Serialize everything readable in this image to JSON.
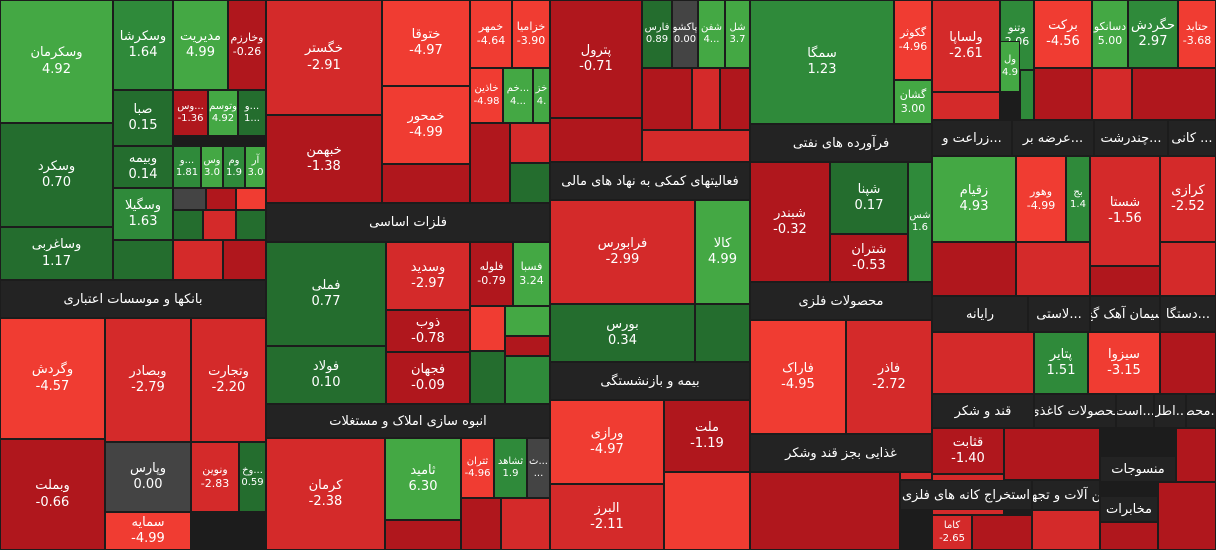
{
  "chart_data": {
    "type": "heatmap",
    "sectors": [
      "بانکها و موسسات اعتباری",
      "فلزات اساسی",
      "انبوه سازی املاک و مستغلات",
      "فعالیتهای کمکی به نهاد های مالی",
      "بیمه و بازنشستگی",
      "فرآورده های نفتی",
      "محصولات فلزی",
      "غذایی بجز قند وشکر",
      "زراعت و...",
      "عرضه بر...",
      "چندرشت...",
      "کانی ...",
      "رایانه",
      "لاستی...",
      "سیمان آهک گچ",
      "دستگا...",
      "قند و شکر",
      "محصولات کاغذی",
      "است...",
      "اطل...",
      "محص...",
      "استخراج کانه های فلزی",
      "ماشین آلات و تجهیزات",
      "منسوجات",
      "مخابرات"
    ],
    "cells": [
      {
        "name": "وسکرمان",
        "value": "4.92"
      },
      {
        "name": "وسکرشا",
        "value": "1.64"
      },
      {
        "name": "مدیریت",
        "value": "4.99"
      },
      {
        "name": "وخارزم",
        "value": "-0.26"
      },
      {
        "name": "وسکرد",
        "value": "0.70"
      },
      {
        "name": "صبا",
        "value": "0.15"
      },
      {
        "name": "وس...",
        "value": "-1.36"
      },
      {
        "name": "وتوسم",
        "value": "4.92"
      },
      {
        "name": "و...",
        "value": "1..."
      },
      {
        "name": "وبیمه",
        "value": "0.14"
      },
      {
        "name": "و...",
        "value": "1.81"
      },
      {
        "name": "وس",
        "value": "3.0"
      },
      {
        "name": "وم",
        "value": "1.9"
      },
      {
        "name": "آر",
        "value": "3.0"
      },
      {
        "name": "وسگیلا",
        "value": "1.63"
      },
      {
        "name": "وساغربی",
        "value": "1.17"
      },
      {
        "name": "وگردش",
        "value": "-4.57"
      },
      {
        "name": "وبصادر",
        "value": "-2.79"
      },
      {
        "name": "وتجارت",
        "value": "-2.20"
      },
      {
        "name": "وپارس",
        "value": "0.00"
      },
      {
        "name": "ونوین",
        "value": "-2.83"
      },
      {
        "name": "وخ...",
        "value": "0.59"
      },
      {
        "name": "وبملت",
        "value": "-0.66"
      },
      {
        "name": "سمایه",
        "value": "-4.99"
      },
      {
        "name": "خگستر",
        "value": "-2.91"
      },
      {
        "name": "خبهمن",
        "value": "-1.38"
      },
      {
        "name": "ختوقا",
        "value": "-4.97"
      },
      {
        "name": "خمحور",
        "value": "-4.99"
      },
      {
        "name": "خمهر",
        "value": "-4.64"
      },
      {
        "name": "خزامیا",
        "value": "-3.90"
      },
      {
        "name": "خاذین",
        "value": "-4.98"
      },
      {
        "name": "خم...",
        "value": "4..."
      },
      {
        "name": "خز",
        "value": "4."
      },
      {
        "name": "فملی",
        "value": "0.77"
      },
      {
        "name": "فولاد",
        "value": "0.10"
      },
      {
        "name": "وسدید",
        "value": "-2.97"
      },
      {
        "name": "فلوله",
        "value": "-0.79"
      },
      {
        "name": "فسبا",
        "value": "3.24"
      },
      {
        "name": "ذوب",
        "value": "-0.78"
      },
      {
        "name": "فجهان",
        "value": "-0.09"
      },
      {
        "name": "کرمان",
        "value": "-2.38"
      },
      {
        "name": "ثامید",
        "value": "6.30"
      },
      {
        "name": "ثتران",
        "value": "-4.96"
      },
      {
        "name": "ثشاهد",
        "value": "1.9"
      },
      {
        "name": "ث...",
        "value": "..."
      },
      {
        "name": "پترول",
        "value": "-0.71"
      },
      {
        "name": "فارس",
        "value": "0.89"
      },
      {
        "name": "پاکشو",
        "value": "0.00"
      },
      {
        "name": "شفن",
        "value": "4..."
      },
      {
        "name": "شل",
        "value": "3.7"
      },
      {
        "name": "فرابورس",
        "value": "-2.99"
      },
      {
        "name": "کالا",
        "value": "4.99"
      },
      {
        "name": "بورس",
        "value": "0.34"
      },
      {
        "name": "ورازی",
        "value": "-4.97"
      },
      {
        "name": "ملت",
        "value": "-1.19"
      },
      {
        "name": "البرز",
        "value": "-2.11"
      },
      {
        "name": "سمگا",
        "value": "1.23"
      },
      {
        "name": "گکوثر",
        "value": "-4.96"
      },
      {
        "name": "گشان",
        "value": "3.00"
      },
      {
        "name": "ولساپا",
        "value": "-2.61"
      },
      {
        "name": "وتنو",
        "value": "2.06"
      },
      {
        "name": "ول",
        "value": "4.9"
      },
      {
        "name": "برکت",
        "value": "-4.56"
      },
      {
        "name": "دسانکو",
        "value": "5.00"
      },
      {
        "name": "حگردش",
        "value": "2.97"
      },
      {
        "name": "حتاید",
        "value": "-3.68"
      },
      {
        "name": "شپنا",
        "value": "0.17"
      },
      {
        "name": "شبندر",
        "value": "-0.32"
      },
      {
        "name": "شتران",
        "value": "-0.53"
      },
      {
        "name": "شس",
        "value": "1.6"
      },
      {
        "name": "زقیام",
        "value": "4.93"
      },
      {
        "name": "وهور",
        "value": "-4.99"
      },
      {
        "name": "بج",
        "value": "1.4"
      },
      {
        "name": "شستا",
        "value": "-1.56"
      },
      {
        "name": "کرازی",
        "value": "-2.52"
      },
      {
        "name": "فاراک",
        "value": "-4.95"
      },
      {
        "name": "فاذر",
        "value": "-2.72"
      },
      {
        "name": "پتایر",
        "value": "1.51"
      },
      {
        "name": "سیزوا",
        "value": "-3.15"
      },
      {
        "name": "قثابت",
        "value": "-1.40"
      },
      {
        "name": "کاما",
        "value": "-2.65"
      }
    ]
  },
  "colors": {
    "background": "#1c1c1c",
    "header": "#232323",
    "dark_green": "#246d2e",
    "mid_green": "#2f8a3a",
    "light_green": "#44a844",
    "neutral": "#444444",
    "dark_red": "#b0171d",
    "red": "#d42a2a",
    "bright_red": "#f03c32"
  }
}
